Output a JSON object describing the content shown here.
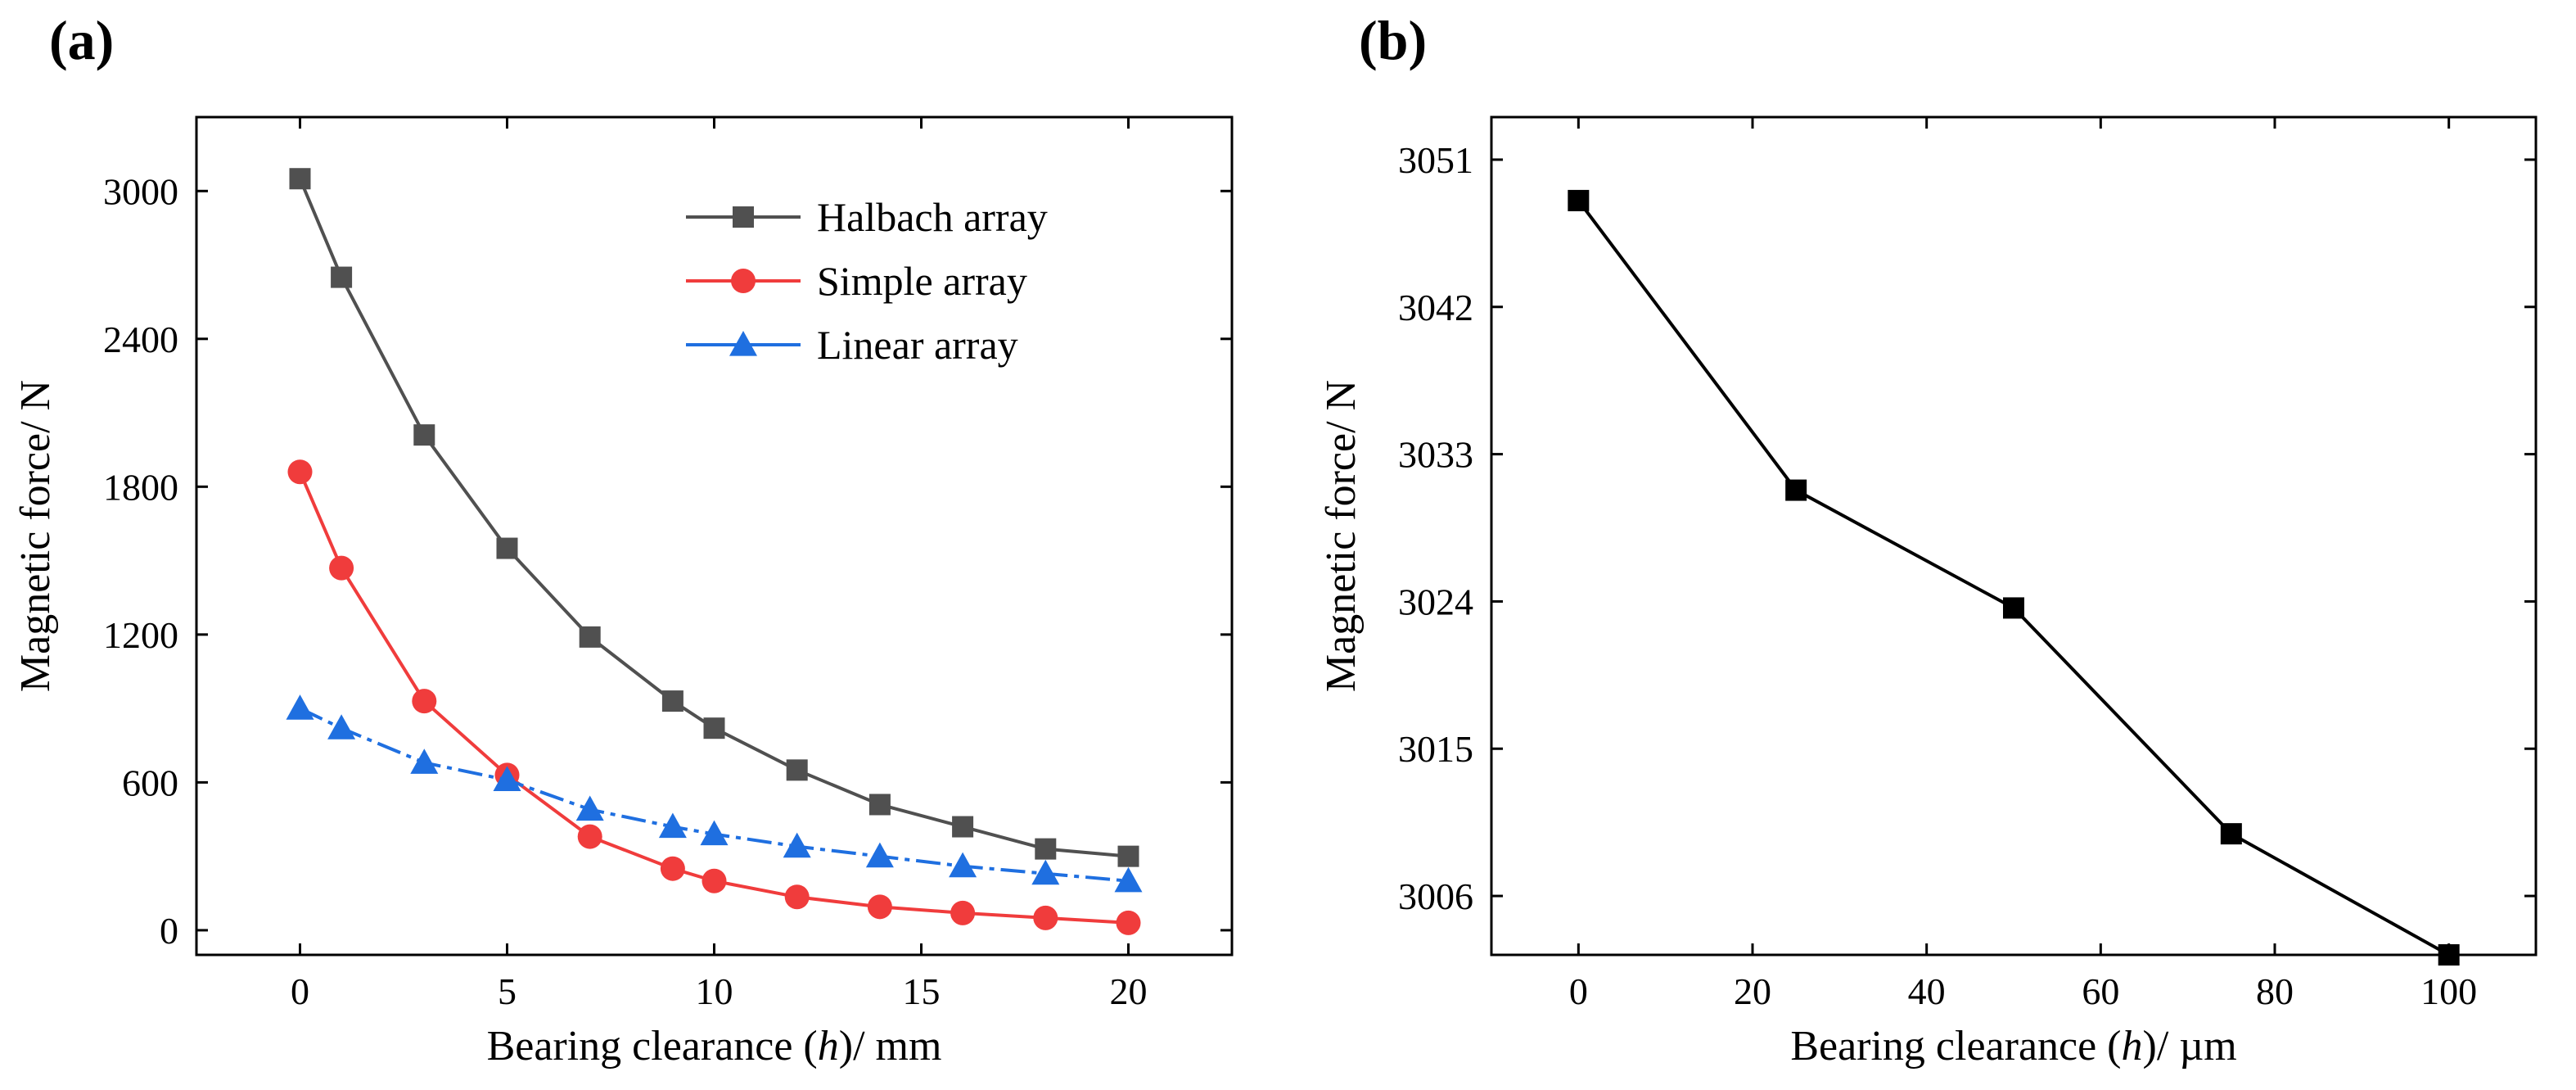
{
  "chart_data": [
    {
      "panel": "(a)",
      "type": "line",
      "xlabel": "Bearing clearance (h)/ mm",
      "ylabel": "Magnetic  force/ N",
      "xlim": [
        -2.5,
        22.5
      ],
      "ylim": [
        -100,
        3300
      ],
      "xticks": [
        0,
        5,
        10,
        15,
        20
      ],
      "yticks": [
        0,
        600,
        1200,
        1800,
        2400,
        3000
      ],
      "legend_position": "top-right",
      "series": [
        {
          "name": "Halbach array",
          "color": "#505050",
          "marker": "square",
          "x": [
            0,
            1,
            3,
            5,
            7,
            9,
            10,
            12,
            14,
            16,
            18,
            20
          ],
          "y": [
            3050,
            2650,
            2010,
            1550,
            1190,
            930,
            820,
            650,
            510,
            420,
            330,
            300
          ]
        },
        {
          "name": "Simple array",
          "color": "#f03c3c",
          "marker": "circle",
          "x": [
            0,
            1,
            3,
            5,
            7,
            9,
            10,
            12,
            14,
            16,
            18,
            20
          ],
          "y": [
            1860,
            1470,
            930,
            630,
            380,
            250,
            200,
            135,
            95,
            70,
            50,
            30
          ]
        },
        {
          "name": "Linear array",
          "color": "#1f6fe0",
          "marker": "triangle",
          "x": [
            0,
            1,
            3,
            5,
            7,
            9,
            10,
            12,
            14,
            16,
            18,
            20
          ],
          "y": [
            900,
            820,
            680,
            610,
            490,
            420,
            390,
            340,
            300,
            260,
            230,
            200
          ]
        }
      ]
    },
    {
      "panel": "(b)",
      "type": "line",
      "xlabel": "Bearing clearance (h)/ µm",
      "ylabel": "Magnetic  force/ N",
      "xlim": [
        -10,
        110
      ],
      "ylim": [
        3002.4,
        3053.6
      ],
      "xticks": [
        0,
        20,
        40,
        60,
        80,
        100
      ],
      "yticks": [
        3006,
        3015,
        3024,
        3033,
        3042,
        3051
      ],
      "series": [
        {
          "name": "Magnetic force",
          "color": "#000000",
          "marker": "square",
          "x": [
            0,
            25,
            50,
            75,
            100
          ],
          "y": [
            3048.5,
            3030.8,
            3023.6,
            3009.8,
            3002.4
          ]
        }
      ]
    }
  ]
}
